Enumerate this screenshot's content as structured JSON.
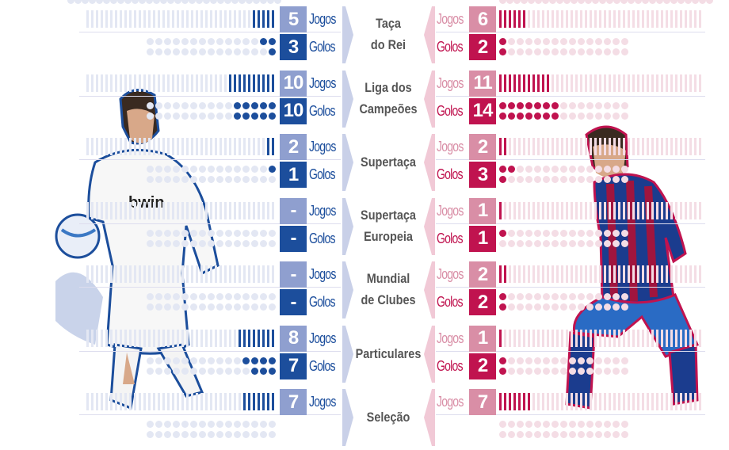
{
  "colors": {
    "left_dark": "#1c4e9c",
    "left_light": "#8f9fcf",
    "right_dark": "#c0134f",
    "right_light": "#d98ea6",
    "faint_left": "#e3e7f3",
    "faint_right": "#f4dde5"
  },
  "labels": {
    "jogos": "Jogos",
    "golos": "Golos"
  },
  "chart_data": {
    "type": "table",
    "categories": [
      "Taça do Rei",
      "Liga dos Campeões",
      "Supertaça",
      "Supertaça Europeia",
      "Mundial de Clubes",
      "Particulares",
      "Seleção"
    ],
    "series": [
      {
        "name": "Jogos (left)",
        "values": [
          "5",
          "10",
          "2",
          "-",
          "-",
          "8",
          "7"
        ]
      },
      {
        "name": "Golos (left)",
        "values": [
          "3",
          "10",
          "1",
          "-",
          "-",
          "7",
          null
        ]
      },
      {
        "name": "Jogos (right)",
        "values": [
          "6",
          "11",
          "2",
          "1",
          "2",
          "1",
          "7"
        ]
      },
      {
        "name": "Golos (right)",
        "values": [
          "2",
          "14",
          "3",
          "1",
          "2",
          "2",
          null
        ]
      }
    ]
  }
}
